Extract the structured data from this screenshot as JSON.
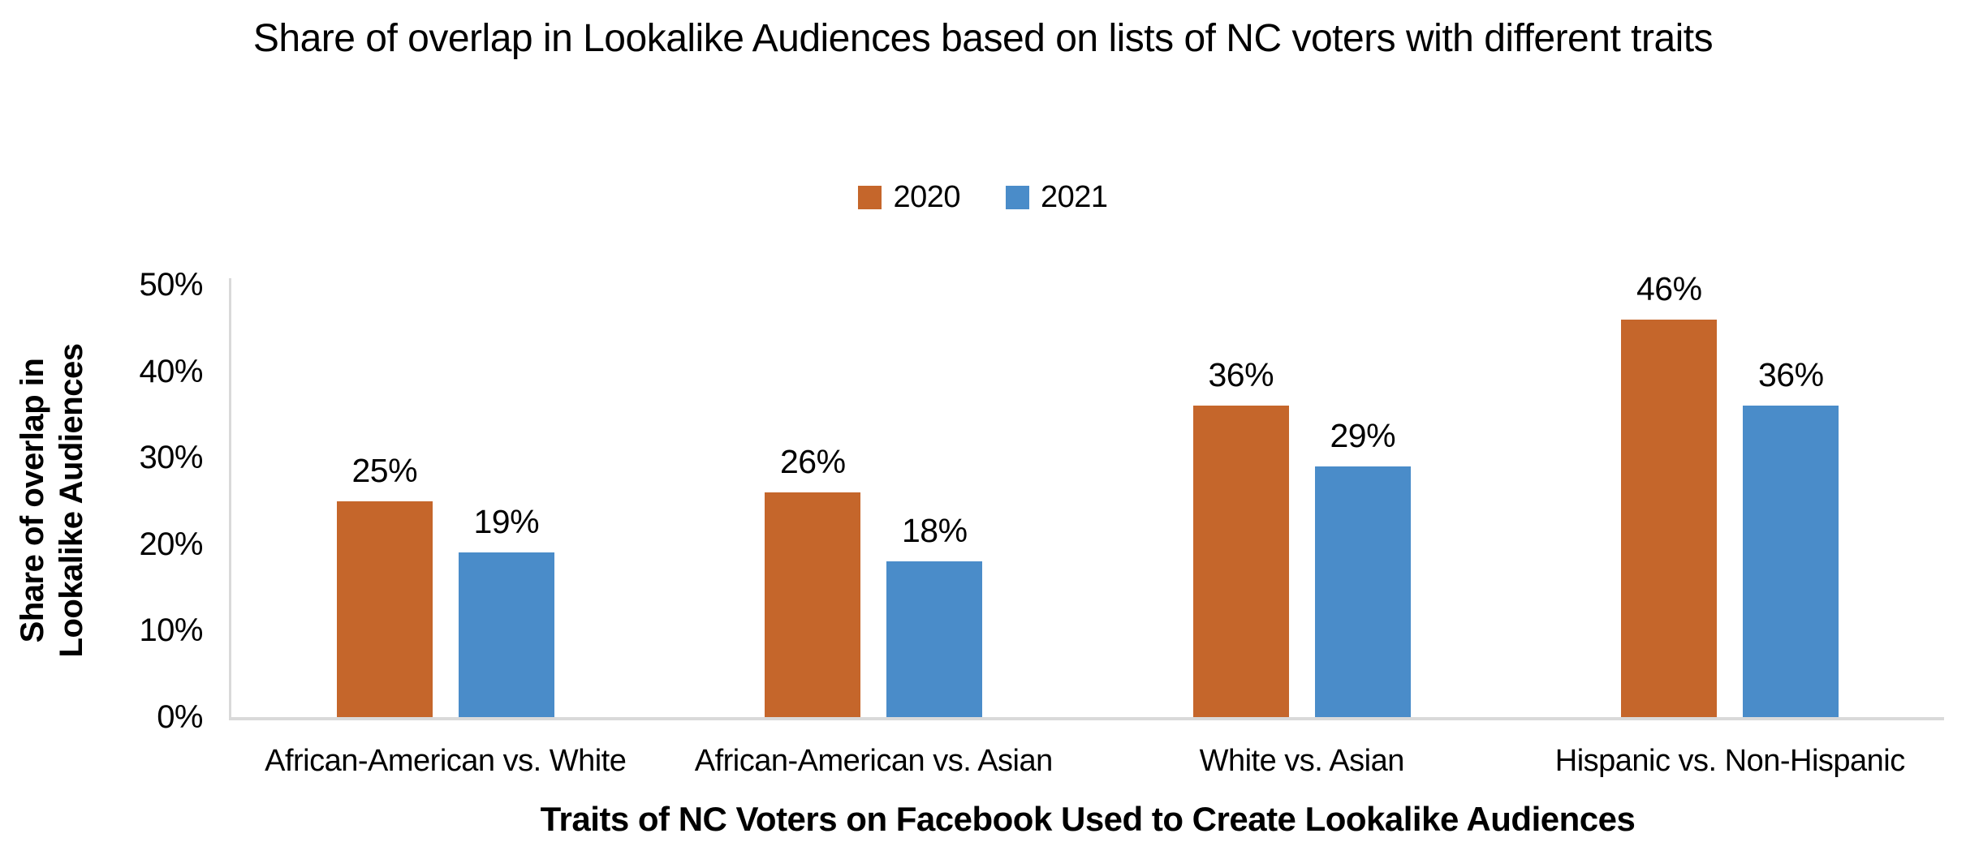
{
  "title": "Share of overlap in Lookalike Audiences based on lists of NC voters with different traits",
  "colors": {
    "series_2020": "#C5662B",
    "series_2021": "#4A8CC9",
    "axis_line": "#D9D9D9",
    "text": "#000000"
  },
  "chart_data": {
    "type": "bar",
    "title": "Share of overlap in Lookalike Audiences based on lists of NC voters with different traits",
    "categories": [
      "African-American vs. White",
      "African-American vs. Asian",
      "White vs. Asian",
      "Hispanic vs. Non-Hispanic"
    ],
    "series": [
      {
        "name": "2020",
        "color": "#C5662B",
        "values": [
          25,
          26,
          36,
          46
        ]
      },
      {
        "name": "2021",
        "color": "#4A8CC9",
        "values": [
          19,
          18,
          29,
          36
        ]
      }
    ],
    "data_labels": [
      "25%",
      "19%",
      "26%",
      "18%",
      "36%",
      "29%",
      "46%",
      "36%"
    ],
    "value_suffix": "%",
    "xlabel": "Traits of NC Voters on Facebook Used to Create Lookalike Audiences",
    "ylabel": "Share of overlap in Lookalike Audiences",
    "ylabel_lines": [
      "Share of overlap in",
      "Lookalike Audiences"
    ],
    "y_ticks": [
      "0%",
      "10%",
      "20%",
      "30%",
      "40%",
      "50%"
    ],
    "ylim": [
      0,
      50
    ],
    "grid": false,
    "legend_position": "top-center"
  }
}
